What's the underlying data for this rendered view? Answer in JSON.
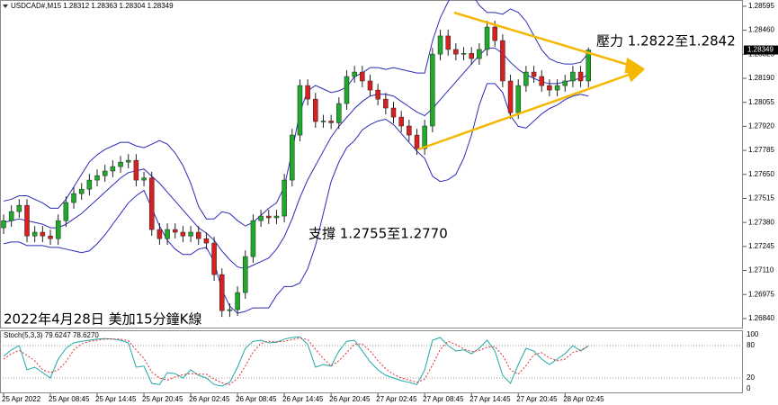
{
  "chart_data": [
    {
      "type": "candlestick",
      "title": "USDCAD#,M15  1.28312 1.28363 1.28304 1.28349",
      "categories": [
        "25 Apr 2022",
        null,
        null,
        null,
        null,
        null,
        "25 Apr 08:45",
        null,
        null,
        null,
        null,
        null,
        "25 Apr 14:45",
        null,
        null,
        null,
        null,
        null,
        "25 Apr 20:45",
        null,
        null,
        null,
        null,
        null,
        "26 Apr 02:45",
        null,
        null,
        null,
        null,
        null,
        "26 Apr 08:45",
        null,
        null,
        null,
        null,
        null,
        "26 Apr 14:45",
        null,
        null,
        null,
        null,
        null,
        "26 Apr 20:45",
        null,
        null,
        null,
        null,
        null,
        "27 Apr 02:45",
        null,
        null,
        null,
        null,
        null,
        "27 Apr 08:45",
        null,
        null,
        null,
        null,
        null,
        "27 Apr 14:45",
        null,
        null,
        null,
        null,
        null,
        "27 Apr 20:45",
        null,
        null,
        null,
        null,
        null,
        "28 Apr 02:45",
        null,
        null,
        null
      ],
      "open": [
        1.2735,
        1.2739,
        1.27441,
        1.27476,
        1.27304,
        1.27325,
        1.27304,
        1.27289,
        1.2739,
        1.27492,
        1.27542,
        1.27567,
        1.27618,
        1.27643,
        1.27669,
        1.27694,
        1.27719,
        1.27729,
        1.27618,
        1.2763,
        1.2734,
        1.27289,
        1.2734,
        1.27325,
        1.27304,
        1.27325,
        1.27289,
        1.27264,
        1.27087,
        1.26884,
        1.2689,
        1.26986,
        1.27188,
        1.2739,
        1.27416,
        1.27406,
        1.27416,
        1.27618,
        1.27871,
        1.28149,
        1.28073,
        1.27947,
        1.2795,
        1.2794,
        1.28048,
        1.282,
        1.28225,
        1.28175,
        1.28124,
        1.28073,
        1.28023,
        1.27972,
        1.27922,
        1.27871,
        1.27795,
        1.27922,
        1.28326,
        1.28428,
        1.28352,
        1.28326,
        1.2833,
        1.28301,
        1.28352,
        1.28478,
        1.28402,
        1.28175,
        1.27997,
        1.28149,
        1.28225,
        1.282,
        1.28149,
        1.28124,
        1.28149,
        1.28175,
        1.28225,
        1.28175
      ],
      "high": [
        1.27425,
        1.27476,
        1.27511,
        1.27511,
        1.2736,
        1.2736,
        1.27339,
        1.27425,
        1.27527,
        1.27577,
        1.27602,
        1.27653,
        1.27678,
        1.27704,
        1.27729,
        1.27754,
        1.27764,
        1.27764,
        1.27665,
        1.27665,
        1.27375,
        1.27375,
        1.27375,
        1.2736,
        1.2736,
        1.2736,
        1.27324,
        1.27299,
        1.27122,
        1.26925,
        1.27021,
        1.27223,
        1.27425,
        1.27451,
        1.27451,
        1.27451,
        1.27653,
        1.27906,
        1.28184,
        1.28184,
        1.28108,
        1.27985,
        1.27985,
        1.28083,
        1.28235,
        1.2826,
        1.2826,
        1.2821,
        1.28159,
        1.28108,
        1.28058,
        1.28007,
        1.27957,
        1.27906,
        1.27957,
        1.28361,
        1.28463,
        1.28463,
        1.28387,
        1.28365,
        1.28365,
        1.28387,
        1.28513,
        1.28513,
        1.28437,
        1.2821,
        1.28184,
        1.2826,
        1.2826,
        1.28235,
        1.28184,
        1.28184,
        1.2821,
        1.2826,
        1.2826,
        1.28363
      ],
      "low": [
        1.27315,
        1.27355,
        1.27406,
        1.27269,
        1.27269,
        1.27269,
        1.27254,
        1.27254,
        1.27355,
        1.27457,
        1.27507,
        1.27532,
        1.27583,
        1.27608,
        1.27634,
        1.27659,
        1.27684,
        1.27583,
        1.27583,
        1.27305,
        1.27254,
        1.27254,
        1.2729,
        1.27269,
        1.27269,
        1.27254,
        1.27229,
        1.27052,
        1.26849,
        1.26849,
        1.26855,
        1.26951,
        1.27153,
        1.27355,
        1.27371,
        1.27371,
        1.27381,
        1.27583,
        1.27836,
        1.28038,
        1.27912,
        1.27912,
        1.27905,
        1.27905,
        1.28013,
        1.28165,
        1.2814,
        1.28089,
        1.28038,
        1.27988,
        1.27937,
        1.27887,
        1.27836,
        1.2776,
        1.2776,
        1.27887,
        1.28291,
        1.28317,
        1.28291,
        1.28291,
        1.28266,
        1.28266,
        1.28317,
        1.28367,
        1.2814,
        1.27962,
        1.27962,
        1.28114,
        1.28165,
        1.28114,
        1.28089,
        1.28089,
        1.28114,
        1.2814,
        1.2814,
        1.2814
      ],
      "close": [
        1.2739,
        1.27441,
        1.27476,
        1.27304,
        1.27325,
        1.27304,
        1.27289,
        1.2739,
        1.27492,
        1.27542,
        1.27567,
        1.27618,
        1.27643,
        1.27669,
        1.27694,
        1.27719,
        1.27729,
        1.27618,
        1.2763,
        1.2734,
        1.27289,
        1.2734,
        1.27325,
        1.27304,
        1.27325,
        1.27289,
        1.27264,
        1.27087,
        1.26884,
        1.2689,
        1.26986,
        1.27188,
        1.2739,
        1.27416,
        1.27406,
        1.27416,
        1.27618,
        1.27871,
        1.28149,
        1.28073,
        1.27947,
        1.2795,
        1.2794,
        1.28048,
        1.282,
        1.28225,
        1.28175,
        1.28124,
        1.28073,
        1.28023,
        1.27972,
        1.27922,
        1.27871,
        1.27795,
        1.27922,
        1.28326,
        1.28428,
        1.28352,
        1.28326,
        1.2833,
        1.28301,
        1.28352,
        1.28478,
        1.28402,
        1.28175,
        1.27997,
        1.28149,
        1.28225,
        1.282,
        1.28149,
        1.28124,
        1.28149,
        1.28175,
        1.28225,
        1.28175,
        1.28349
      ],
      "up_color": "#1faa2a",
      "down_color": "#d92020",
      "series": [
        {
          "color": "#2b2bb8",
          "values": [
            1.275,
            1.2751,
            1.2753,
            1.2753,
            1.2751,
            1.2749,
            1.2746,
            1.2746,
            1.2751,
            1.2758,
            1.2765,
            1.2772,
            1.2776,
            1.2779,
            1.2781,
            1.2783,
            1.2783,
            1.2781,
            1.278,
            1.2782,
            1.2784,
            1.2782,
            1.2777,
            1.277,
            1.276,
            1.2747,
            1.274,
            1.274,
            1.2744,
            1.2743,
            1.2739,
            1.2736,
            1.2738,
            1.2742,
            1.2746,
            1.2749,
            1.2758,
            1.2778,
            1.28,
            1.2812,
            1.2815,
            1.2813,
            1.2811,
            1.2812,
            1.2814,
            1.282,
            1.2822,
            1.2825,
            1.2825,
            1.2824,
            1.2825,
            1.2824,
            1.2823,
            1.2822,
            1.2822,
            1.284,
            1.2853,
            1.2862,
            1.2869,
            1.287,
            1.2867,
            1.286,
            1.2856,
            1.2856,
            1.2855,
            1.2858,
            1.2856,
            1.2851,
            1.2843,
            1.2835,
            1.283,
            1.2828,
            1.2827,
            1.2827,
            1.2828,
            1.2833
          ]
        },
        {
          "color": "#2b2bb8",
          "values": [
            1.2738,
            1.2739,
            1.274,
            1.2739,
            1.2738,
            1.2737,
            1.2735,
            1.2735,
            1.2737,
            1.274,
            1.2743,
            1.2747,
            1.2751,
            1.2755,
            1.2759,
            1.2763,
            1.2766,
            1.2767,
            1.2768,
            1.2764,
            1.276,
            1.2755,
            1.275,
            1.2745,
            1.274,
            1.2735,
            1.2732,
            1.2728,
            1.2722,
            1.2717,
            1.2713,
            1.2712,
            1.2714,
            1.2716,
            1.2718,
            1.2723,
            1.273,
            1.274,
            1.2752,
            1.2762,
            1.277,
            1.2778,
            1.2786,
            1.2792,
            1.2797,
            1.2802,
            1.2806,
            1.2809,
            1.281,
            1.281,
            1.2809,
            1.2806,
            1.2803,
            1.28,
            1.2798,
            1.2802,
            1.2807,
            1.2812,
            1.2817,
            1.2822,
            1.2827,
            1.2832,
            1.2836,
            1.2836,
            1.2833,
            1.2828,
            1.2824,
            1.2821,
            1.2819,
            1.2817,
            1.2816,
            1.2816,
            1.2817,
            1.2818,
            1.2819,
            1.2821
          ]
        },
        {
          "color": "#2b2bb8",
          "values": [
            1.2726,
            1.2727,
            1.2727,
            1.2725,
            1.2725,
            1.2725,
            1.2724,
            1.2724,
            1.2723,
            1.2722,
            1.2721,
            1.2722,
            1.2726,
            1.2731,
            1.2737,
            1.2743,
            1.2749,
            1.2753,
            1.2756,
            1.2746,
            1.2736,
            1.2728,
            1.2723,
            1.272,
            1.272,
            1.2723,
            1.2724,
            1.2716,
            1.27,
            1.2691,
            1.2687,
            1.2688,
            1.269,
            1.269,
            1.269,
            1.2697,
            1.2702,
            1.2702,
            1.2704,
            1.2712,
            1.2725,
            1.2743,
            1.2761,
            1.2772,
            1.278,
            1.2784,
            1.279,
            1.2793,
            1.2795,
            1.2796,
            1.2793,
            1.2788,
            1.2783,
            1.2778,
            1.2774,
            1.2764,
            1.2761,
            1.2762,
            1.2765,
            1.2774,
            1.2787,
            1.2804,
            1.2816,
            1.2816,
            1.2811,
            1.2798,
            1.2792,
            1.2791,
            1.2795,
            1.2799,
            1.2802,
            1.2804,
            1.2807,
            1.2809,
            1.281,
            1.2809
          ]
        }
      ],
      "ylim": [
        1.26784,
        1.2863
      ],
      "yticks": [
        1.28595,
        {
          "value": 1.2846,
          "label": "1.28460"
        },
        1.28325,
        {
          "value": 1.2819,
          "label": "1.28190"
        },
        1.28055,
        {
          "value": 1.2792,
          "label": "1.27920"
        },
        1.27785,
        {
          "value": 1.2765,
          "label": "1.27650"
        },
        1.27515,
        {
          "value": 1.2738,
          "label": "1.27380"
        },
        1.27245,
        {
          "value": 1.2711,
          "label": "1.27110"
        },
        1.26975,
        {
          "value": 1.2684,
          "label": "1.26840"
        }
      ],
      "last_price": 1.28349,
      "annotations": [
        "壓力 1.2822至1.2842",
        "支撐 1.2755至1.2770",
        "2022年4月28日 美加15分鐘K線"
      ]
    },
    {
      "type": "line",
      "title": "Stoch(5,3,3) 79.6247 78.6270",
      "series": [
        {
          "color": "#20a8a8",
          "values": [
            60,
            72,
            80,
            35,
            40,
            30,
            20,
            55,
            75,
            85,
            88,
            90,
            92,
            93,
            92,
            90,
            85,
            40,
            42,
            10,
            8,
            30,
            28,
            20,
            35,
            25,
            20,
            8,
            5,
            12,
            40,
            75,
            88,
            90,
            85,
            86,
            92,
            95,
            96,
            82,
            40,
            45,
            42,
            70,
            88,
            90,
            70,
            50,
            35,
            25,
            20,
            15,
            12,
            8,
            35,
            90,
            95,
            80,
            70,
            72,
            65,
            75,
            90,
            70,
            25,
            10,
            45,
            75,
            70,
            55,
            45,
            55,
            65,
            80,
            70,
            79.6247
          ]
        },
        {
          "color": "#e03030",
          "values": [
            55,
            65,
            71,
            62,
            52,
            35,
            30,
            35,
            50,
            72,
            83,
            88,
            90,
            92,
            92,
            92,
            89,
            72,
            56,
            31,
            20,
            16,
            22,
            26,
            28,
            27,
            27,
            18,
            11,
            8,
            19,
            42,
            68,
            84,
            88,
            87,
            88,
            91,
            94,
            91,
            73,
            56,
            42,
            52,
            67,
            83,
            83,
            70,
            52,
            37,
            27,
            20,
            16,
            12,
            18,
            44,
            73,
            88,
            82,
            74,
            69,
            71,
            77,
            78,
            62,
            35,
            27,
            43,
            63,
            67,
            57,
            52,
            55,
            67,
            72,
            78.627
          ]
        }
      ],
      "ylim": [
        0,
        100
      ],
      "yticks": [
        0,
        20,
        80,
        100
      ]
    }
  ]
}
